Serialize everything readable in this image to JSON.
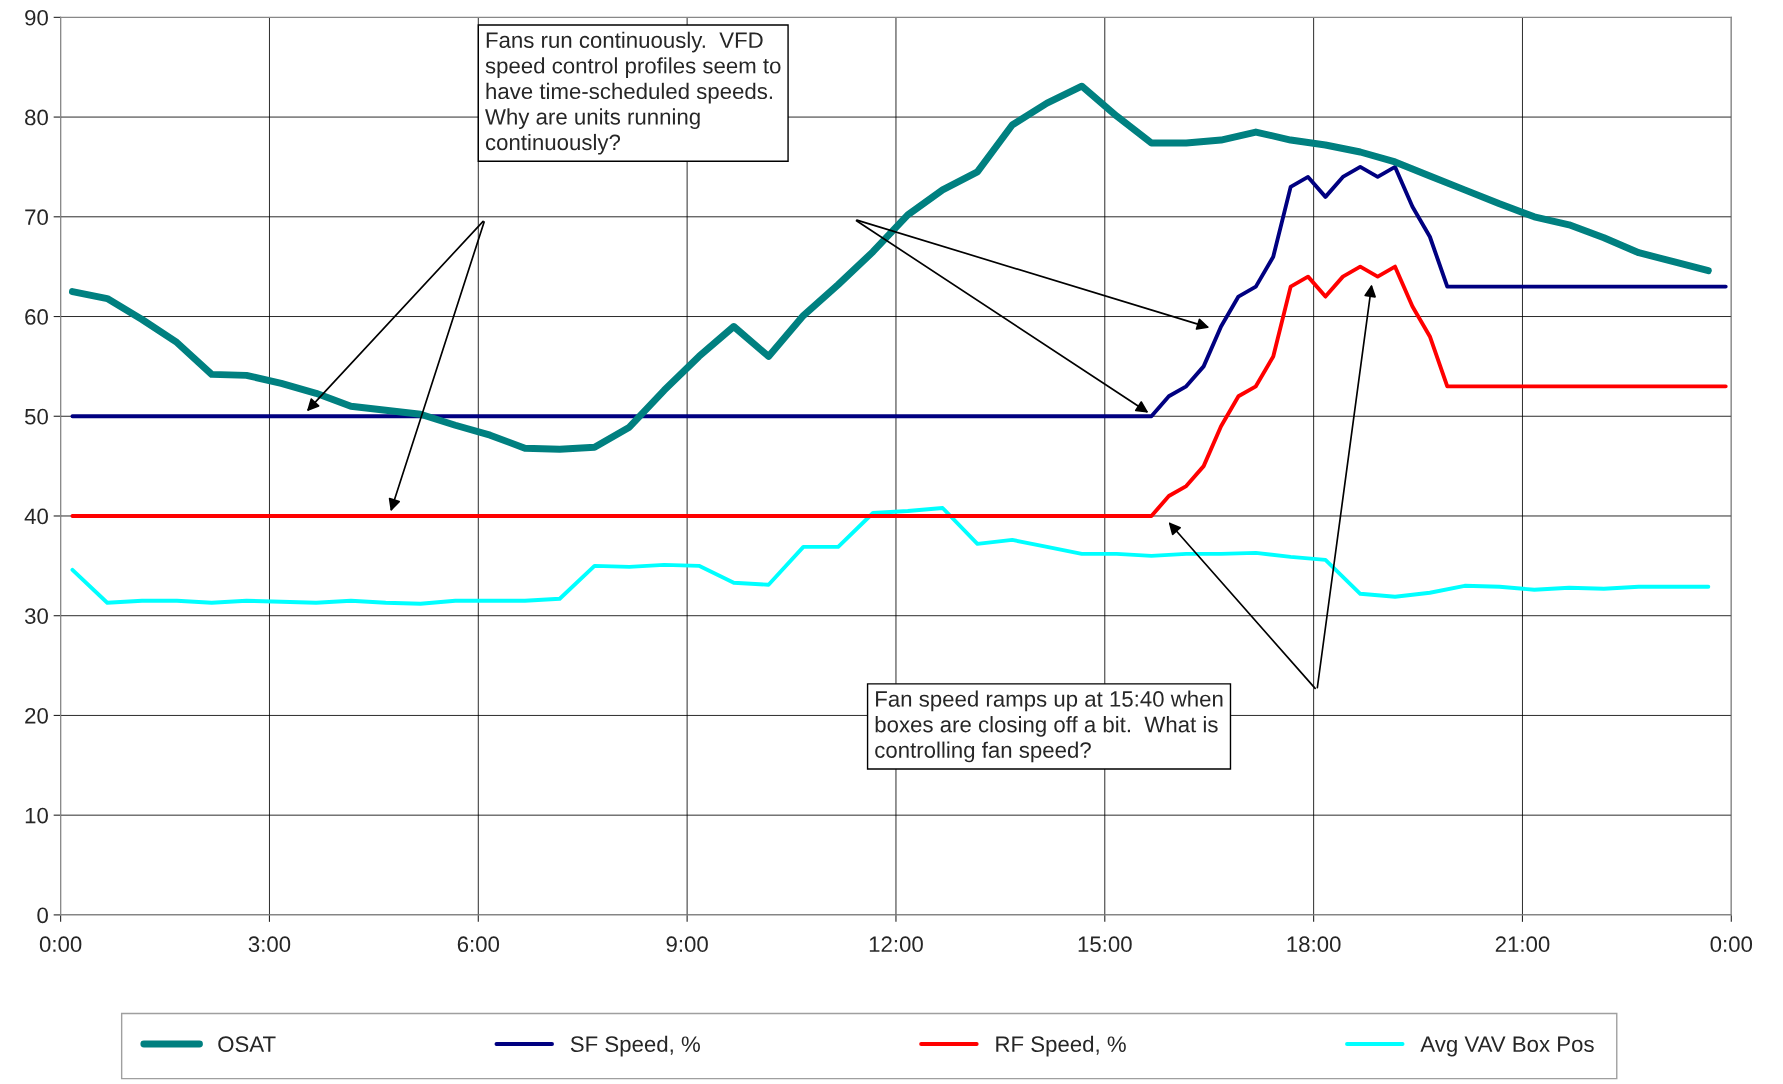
{
  "chart_data": {
    "type": "line",
    "xlim": [
      0,
      24
    ],
    "ylim": [
      0,
      90
    ],
    "xticks": [
      {
        "value": 0,
        "label": "0:00"
      },
      {
        "value": 3,
        "label": "3:00"
      },
      {
        "value": 6,
        "label": "6:00"
      },
      {
        "value": 9,
        "label": "9:00"
      },
      {
        "value": 12,
        "label": "12:00"
      },
      {
        "value": 15,
        "label": "15:00"
      },
      {
        "value": 18,
        "label": "18:00"
      },
      {
        "value": 21,
        "label": "21:00"
      },
      {
        "value": 24,
        "label": "0:00"
      }
    ],
    "yticks": [
      0,
      10,
      20,
      30,
      40,
      50,
      60,
      70,
      80,
      90
    ],
    "grid": true,
    "legend": "bottom",
    "marker": "none",
    "line_style": "solid",
    "series": [
      {
        "name": "OSAT",
        "color": "#008080",
        "x": [
          0.17,
          0.67,
          1.17,
          1.67,
          2.17,
          2.67,
          3.17,
          3.67,
          4.17,
          4.67,
          5.17,
          5.67,
          6.17,
          6.67,
          7.17,
          7.67,
          8.17,
          8.67,
          9.17,
          9.67,
          10.17,
          10.67,
          11.17,
          11.67,
          12.17,
          12.67,
          13.17,
          13.67,
          14.17,
          14.67,
          15.17,
          15.67,
          16.17,
          16.67,
          17.17,
          17.67,
          18.17,
          18.67,
          19.17,
          19.67,
          20.17,
          20.67,
          21.17,
          21.67,
          22.17,
          22.67,
          23.17,
          23.67
        ],
        "values": [
          62.5,
          61.8,
          59.7,
          57.4,
          54.2,
          54.1,
          53.3,
          52.3,
          51.0,
          50.6,
          50.2,
          49.1,
          48.1,
          46.8,
          46.7,
          46.9,
          48.9,
          52.6,
          56.0,
          59.0,
          56.0,
          60.1,
          63.2,
          66.5,
          70.2,
          72.7,
          74.5,
          79.2,
          81.4,
          83.1,
          80.1,
          77.4,
          77.4,
          77.7,
          78.5,
          77.7,
          77.2,
          76.5,
          75.5,
          74.1,
          72.7,
          71.3,
          70.0,
          69.2,
          67.9,
          66.4,
          65.5,
          64.6
        ]
      },
      {
        "name": "SF Speed, %",
        "color": "#000080",
        "x": [
          0.17,
          15.67,
          15.92,
          16.17,
          16.42,
          16.67,
          16.92,
          17.17,
          17.42,
          17.67,
          17.92,
          18.17,
          18.42,
          18.67,
          18.92,
          19.17,
          19.42,
          19.67,
          19.92,
          23.92
        ],
        "values": [
          50,
          50,
          52,
          53,
          55,
          59,
          62,
          63,
          66,
          73,
          74,
          72,
          74,
          75,
          74,
          75,
          71,
          68,
          63,
          63
        ]
      },
      {
        "name": "RF Speed, %",
        "color": "#ff0000",
        "x": [
          0.17,
          15.67,
          15.92,
          16.17,
          16.42,
          16.67,
          16.92,
          17.17,
          17.42,
          17.67,
          17.92,
          18.17,
          18.42,
          18.67,
          18.92,
          19.17,
          19.42,
          19.67,
          19.92,
          23.92
        ],
        "values": [
          40,
          40,
          42,
          43,
          45,
          49,
          52,
          53,
          56,
          63,
          64,
          62,
          64,
          65,
          64,
          65,
          61,
          58,
          53,
          53
        ]
      },
      {
        "name": "Avg VAV Box Pos",
        "color": "#00ffff",
        "x": [
          0.17,
          0.67,
          1.17,
          1.67,
          2.17,
          2.67,
          3.17,
          3.67,
          4.17,
          4.67,
          5.17,
          5.67,
          6.17,
          6.67,
          7.17,
          7.67,
          8.17,
          8.67,
          9.17,
          9.67,
          10.17,
          10.67,
          11.17,
          11.67,
          12.17,
          12.67,
          13.17,
          13.67,
          14.17,
          14.67,
          15.17,
          15.67,
          16.17,
          16.67,
          17.17,
          17.67,
          18.17,
          18.67,
          19.17,
          19.67,
          20.17,
          20.67,
          21.17,
          21.67,
          22.17,
          22.67,
          23.17,
          23.67
        ],
        "values": [
          34.6,
          31.3,
          31.5,
          31.5,
          31.3,
          31.5,
          31.4,
          31.3,
          31.5,
          31.3,
          31.2,
          31.5,
          31.5,
          31.5,
          31.7,
          35.0,
          34.9,
          35.1,
          35.0,
          33.3,
          33.1,
          36.9,
          36.9,
          40.3,
          40.5,
          40.8,
          37.2,
          37.6,
          36.9,
          36.2,
          36.2,
          36.0,
          36.2,
          36.2,
          36.3,
          35.9,
          35.6,
          32.2,
          31.9,
          32.3,
          33.0,
          32.9,
          32.6,
          32.8,
          32.7,
          32.9,
          32.9,
          32.9
        ]
      }
    ],
    "annotations": [
      "Fans run continuously.  VFD\nspeed control profiles seem to\nhave time-scheduled speeds.\nWhy are units running\ncontinuously?",
      "Fan speed ramps up at 15:40 when\nboxes are closing off a bit.  What is\ncontrolling fan speed?"
    ]
  }
}
